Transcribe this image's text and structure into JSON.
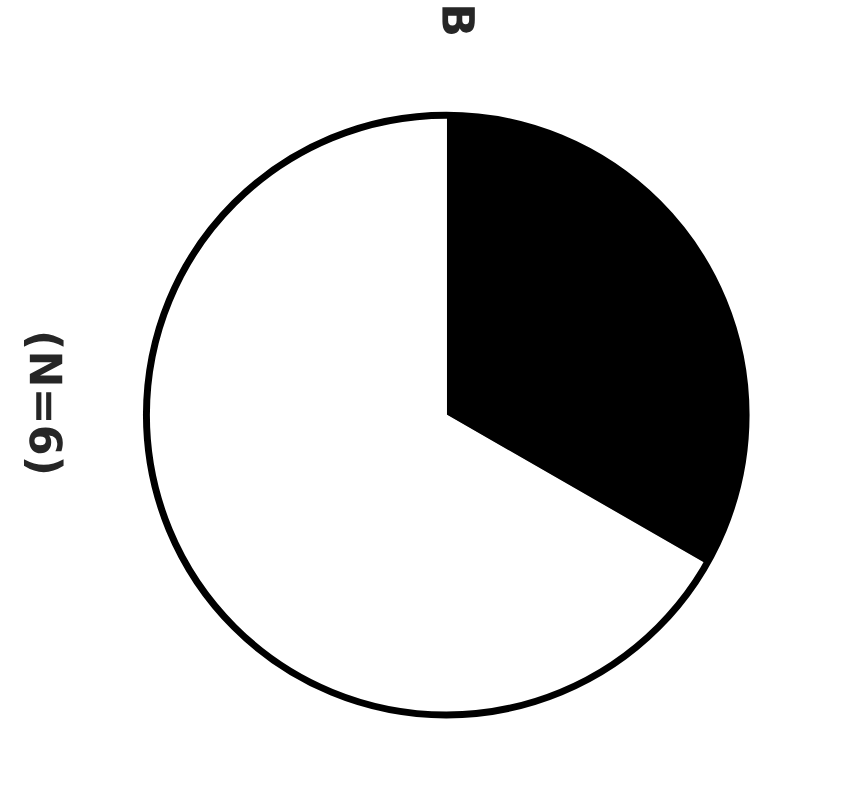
{
  "chart_data": {
    "type": "pie",
    "title": "B",
    "subtitle": "(N=6)",
    "categories": [
      null,
      null
    ],
    "values": [
      33.3,
      66.7
    ],
    "colors": [
      "#000000",
      "#ffffff"
    ],
    "legend": false
  }
}
